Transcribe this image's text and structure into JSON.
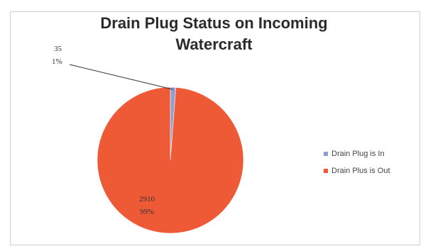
{
  "chart_data": {
    "type": "pie",
    "title_lines": [
      "Drain Plug Status on Incoming",
      "Watercraft"
    ],
    "categories": [
      "Drain Plug is In",
      "Drain Plus is Out"
    ],
    "values": [
      35,
      2910
    ],
    "percent_labels": [
      "1%",
      "99%"
    ],
    "colors": [
      "#8f9fd4",
      "#ef5a36"
    ],
    "legend_position": "right",
    "start_angle_deg": 0
  }
}
